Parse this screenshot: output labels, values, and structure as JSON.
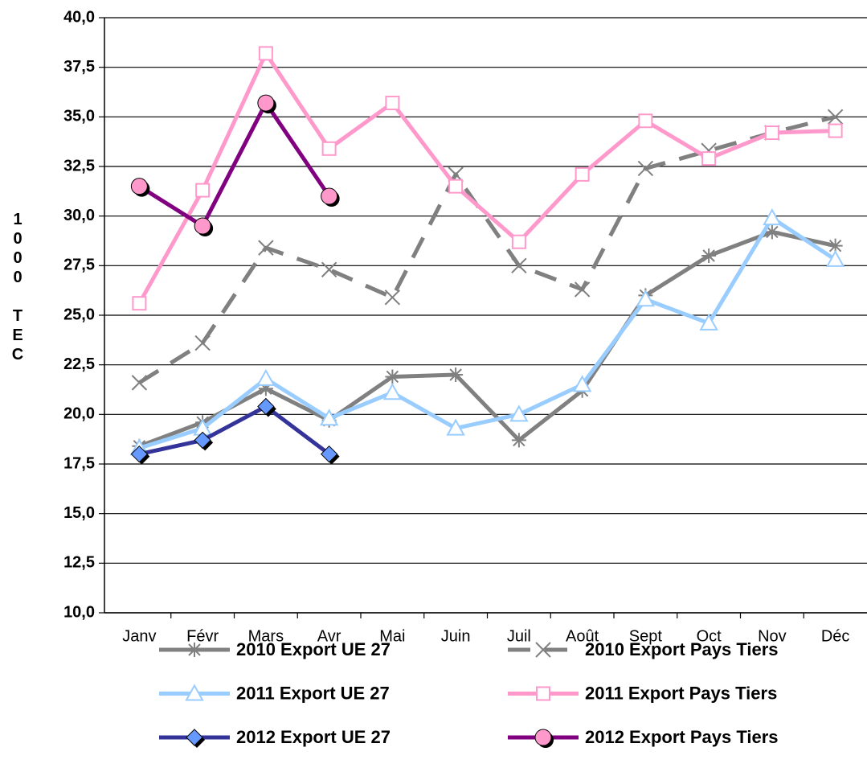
{
  "chart_data": {
    "type": "line",
    "y_label": "1000 TEC",
    "categories": [
      "Janv",
      "Févr",
      "Mars",
      "Avr",
      "Mai",
      "Juin",
      "Juil",
      "Août",
      "Sept",
      "Oct",
      "Nov",
      "Déc"
    ],
    "ylim": [
      10,
      40
    ],
    "yticks": [
      {
        "value": 10,
        "label": "10,0"
      },
      {
        "value": 12.5,
        "label": "12,5"
      },
      {
        "value": 15,
        "label": "15,0"
      },
      {
        "value": 17.5,
        "label": "17,5"
      },
      {
        "value": 20,
        "label": "20,0"
      },
      {
        "value": 22.5,
        "label": "22,5"
      },
      {
        "value": 25,
        "label": "25,0"
      },
      {
        "value": 27.5,
        "label": "27,5"
      },
      {
        "value": 30,
        "label": "30,0"
      },
      {
        "value": 32.5,
        "label": "32,5"
      },
      {
        "value": 35,
        "label": "35,0"
      },
      {
        "value": 37.5,
        "label": "37,5"
      },
      {
        "value": 40,
        "label": "40,0"
      }
    ],
    "grid": true,
    "legend": "bottom",
    "series": [
      {
        "name": "2010 Export UE 27",
        "color": "#808080",
        "marker": "asterisk",
        "dash": false,
        "values": [
          18.4,
          19.6,
          21.3,
          19.7,
          21.9,
          22.0,
          18.7,
          21.2,
          26.0,
          28.0,
          29.2,
          28.5
        ]
      },
      {
        "name": "2010 Export Pays Tiers",
        "color": "#808080",
        "marker": "x",
        "dash": true,
        "values": [
          21.6,
          23.6,
          28.4,
          27.3,
          25.9,
          32.1,
          27.5,
          26.3,
          32.4,
          33.3,
          34.2,
          35.0
        ]
      },
      {
        "name": "2011 Export UE 27",
        "color": "#99ccff",
        "marker": "triangle",
        "dash": false,
        "values": [
          18.3,
          19.3,
          21.8,
          19.8,
          21.1,
          19.3,
          20.0,
          21.5,
          25.8,
          24.6,
          29.9,
          27.8
        ]
      },
      {
        "name": "2011 Export Pays Tiers",
        "color": "#ff99cc",
        "marker": "square",
        "dash": false,
        "values": [
          25.6,
          31.3,
          38.2,
          33.4,
          35.7,
          31.5,
          28.7,
          32.1,
          34.8,
          32.9,
          34.2,
          34.3
        ]
      },
      {
        "name": "2012 Export UE 27",
        "color": "#333399",
        "marker": "diamond",
        "dash": false,
        "values": [
          18.0,
          18.7,
          20.4,
          18.0,
          null,
          null,
          null,
          null,
          null,
          null,
          null,
          null
        ]
      },
      {
        "name": "2012 Export Pays Tiers",
        "color": "#800080",
        "marker": "circle",
        "dash": false,
        "values": [
          31.5,
          29.5,
          35.7,
          31.0,
          null,
          null,
          null,
          null,
          null,
          null,
          null,
          null
        ]
      }
    ]
  }
}
